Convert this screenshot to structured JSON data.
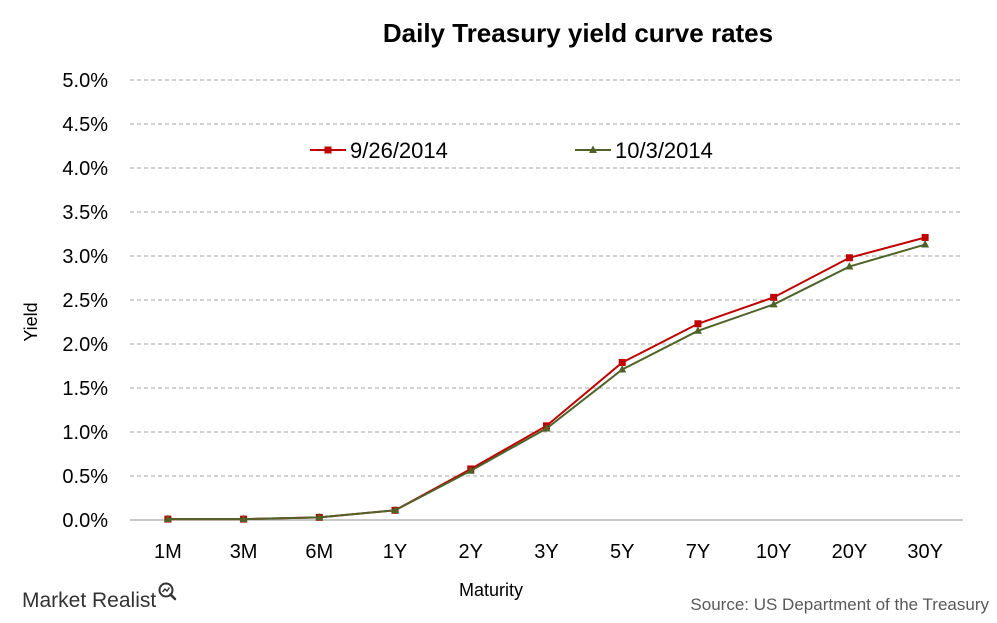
{
  "chart_data": {
    "type": "line",
    "title": "Daily Treasury yield curve rates",
    "xlabel": "Maturity",
    "ylabel": "Yield",
    "categories": [
      "1M",
      "3M",
      "6M",
      "1Y",
      "2Y",
      "3Y",
      "5Y",
      "7Y",
      "10Y",
      "20Y",
      "30Y"
    ],
    "y_ticks": [
      "0.0%",
      "0.5%",
      "1.0%",
      "1.5%",
      "2.0%",
      "2.5%",
      "3.0%",
      "3.5%",
      "4.0%",
      "4.5%",
      "5.0%"
    ],
    "ylim": [
      0,
      5
    ],
    "grid": true,
    "legend_position": "top",
    "series": [
      {
        "name": "9/26/2014",
        "color": "#C00000",
        "marker": "square",
        "values": [
          0.01,
          0.01,
          0.03,
          0.11,
          0.58,
          1.07,
          1.79,
          2.23,
          2.53,
          2.98,
          3.21
        ]
      },
      {
        "name": "10/3/2014",
        "color": "#4F6228",
        "marker": "triangle",
        "values": [
          0.01,
          0.01,
          0.03,
          0.11,
          0.56,
          1.04,
          1.71,
          2.15,
          2.45,
          2.88,
          3.13
        ]
      }
    ]
  },
  "source": "Source: US Department of the Treasury",
  "brand": {
    "name": "Market Realist",
    "icon": "magnifier-chart-icon"
  }
}
